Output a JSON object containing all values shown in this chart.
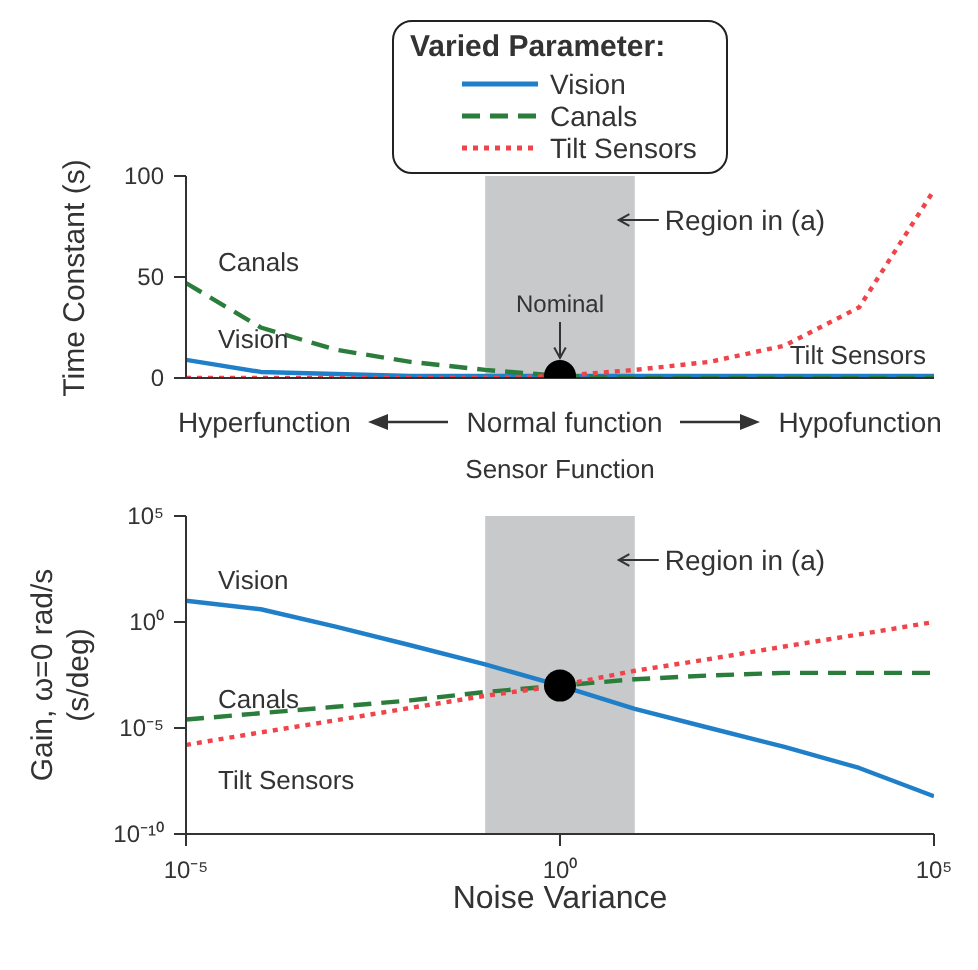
{
  "chart_data": [
    {
      "type": "line",
      "ylabel": "Time Constant (s)",
      "xlabel": "Sensor Function",
      "legend_title": "Varied Parameter:",
      "legend": "top",
      "log": "x",
      "tick_labels": "y",
      "xlim": [
        1e-05,
        100000
      ],
      "ylim": [
        0,
        100
      ],
      "yticks": [
        0,
        50,
        100
      ],
      "x": [
        1e-05,
        0.0001,
        0.001,
        0.01,
        0.1,
        1,
        10,
        100,
        1000,
        10000,
        100000
      ],
      "series": [
        {
          "name": "Vision",
          "color": "#1f7fc8",
          "line_style": "solid",
          "values": [
            9,
            3,
            2,
            1,
            1,
            1,
            1,
            1,
            1,
            1,
            1
          ]
        },
        {
          "name": "Canals",
          "color": "#2a7d3a",
          "line_style": "dashed",
          "values": [
            47,
            25,
            14,
            8,
            4,
            1,
            0,
            0,
            0,
            0,
            0
          ]
        },
        {
          "name": "Tilt Sensors",
          "color": "#f0444a",
          "line_style": "dotted",
          "values": [
            0,
            0,
            0,
            0,
            0,
            1,
            4,
            8,
            16,
            35,
            93
          ]
        },
        {
          "type": "scatter",
          "color": "#000000",
          "marker": "circle",
          "x": [
            1
          ],
          "values": [
            1
          ]
        }
      ],
      "bands": [
        {
          "axis": "x",
          "from": 0.1,
          "to": 10,
          "label": "Region in (a)",
          "color": "#c8c9cb"
        }
      ],
      "annotations": [
        "Hyperfunction",
        "Normal function",
        "Hypofunction",
        {
          "text": "Nominal",
          "x": 1,
          "y": 1
        },
        {
          "text": "Canals",
          "x": 1e-05,
          "y": 47
        },
        {
          "text": "Vision",
          "x": 1e-05,
          "y": 9
        },
        {
          "text": "Tilt Sensors",
          "x": 100000,
          "y": 1
        }
      ]
    },
    {
      "type": "line",
      "ylabel": "Gain, ω=0 rad/s (s/deg)",
      "xlabel": "Noise Variance",
      "log": "xy",
      "xlim": [
        1e-05,
        100000
      ],
      "xticks": [
        {
          "value": 1e-05,
          "label": "10⁻⁵"
        },
        {
          "value": 1,
          "label": "10⁰"
        },
        {
          "value": 100000,
          "label": "10⁵"
        }
      ],
      "ylim": [
        1e-10,
        100000
      ],
      "yticks": [
        {
          "value": 1e-10,
          "label": "10⁻¹⁰"
        },
        {
          "value": 1e-05,
          "label": "10⁻⁵"
        },
        {
          "value": 1,
          "label": "10⁰"
        },
        {
          "value": 100000,
          "label": "10⁵"
        }
      ],
      "x": [
        1e-05,
        0.0001,
        0.001,
        0.01,
        0.1,
        1,
        10,
        100,
        1000,
        10000,
        100000
      ],
      "series": [
        {
          "color": "#1f7fc8",
          "line_style": "solid",
          "values": [
            10,
            4,
            0.6,
            0.08,
            0.01,
            0.001,
            8e-05,
            1e-05,
            1.3e-06,
            1.3e-07,
            6e-09
          ]
        },
        {
          "color": "#2a7d3a",
          "line_style": "dashed",
          "values": [
            2.5e-05,
            5e-05,
            0.0001,
            0.0002,
            0.0005,
            0.001,
            0.002,
            0.003,
            0.004,
            0.004,
            0.004
          ]
        },
        {
          "color": "#f0444a",
          "line_style": "dotted",
          "values": [
            1.6e-06,
            6.2e-06,
            2.3e-05,
            8.9e-05,
            0.00033,
            0.001,
            0.005,
            0.018,
            0.07,
            0.26,
            1
          ]
        },
        {
          "type": "scatter",
          "color": "#000000",
          "marker": "circle",
          "x": [
            1
          ],
          "values": [
            0.001
          ]
        }
      ],
      "bands": [
        {
          "axis": "x",
          "from": 0.1,
          "to": 10,
          "label": "Region in (a)",
          "color": "#c8c9cb"
        }
      ],
      "annotations": [
        {
          "text": "Vision",
          "x": 1e-05,
          "y": 10
        },
        {
          "text": "Canals",
          "x": 1e-05,
          "y": 2.5e-05
        },
        {
          "text": "Tilt Sensors",
          "x": 1e-05,
          "y": 1.6e-06
        }
      ]
    }
  ]
}
